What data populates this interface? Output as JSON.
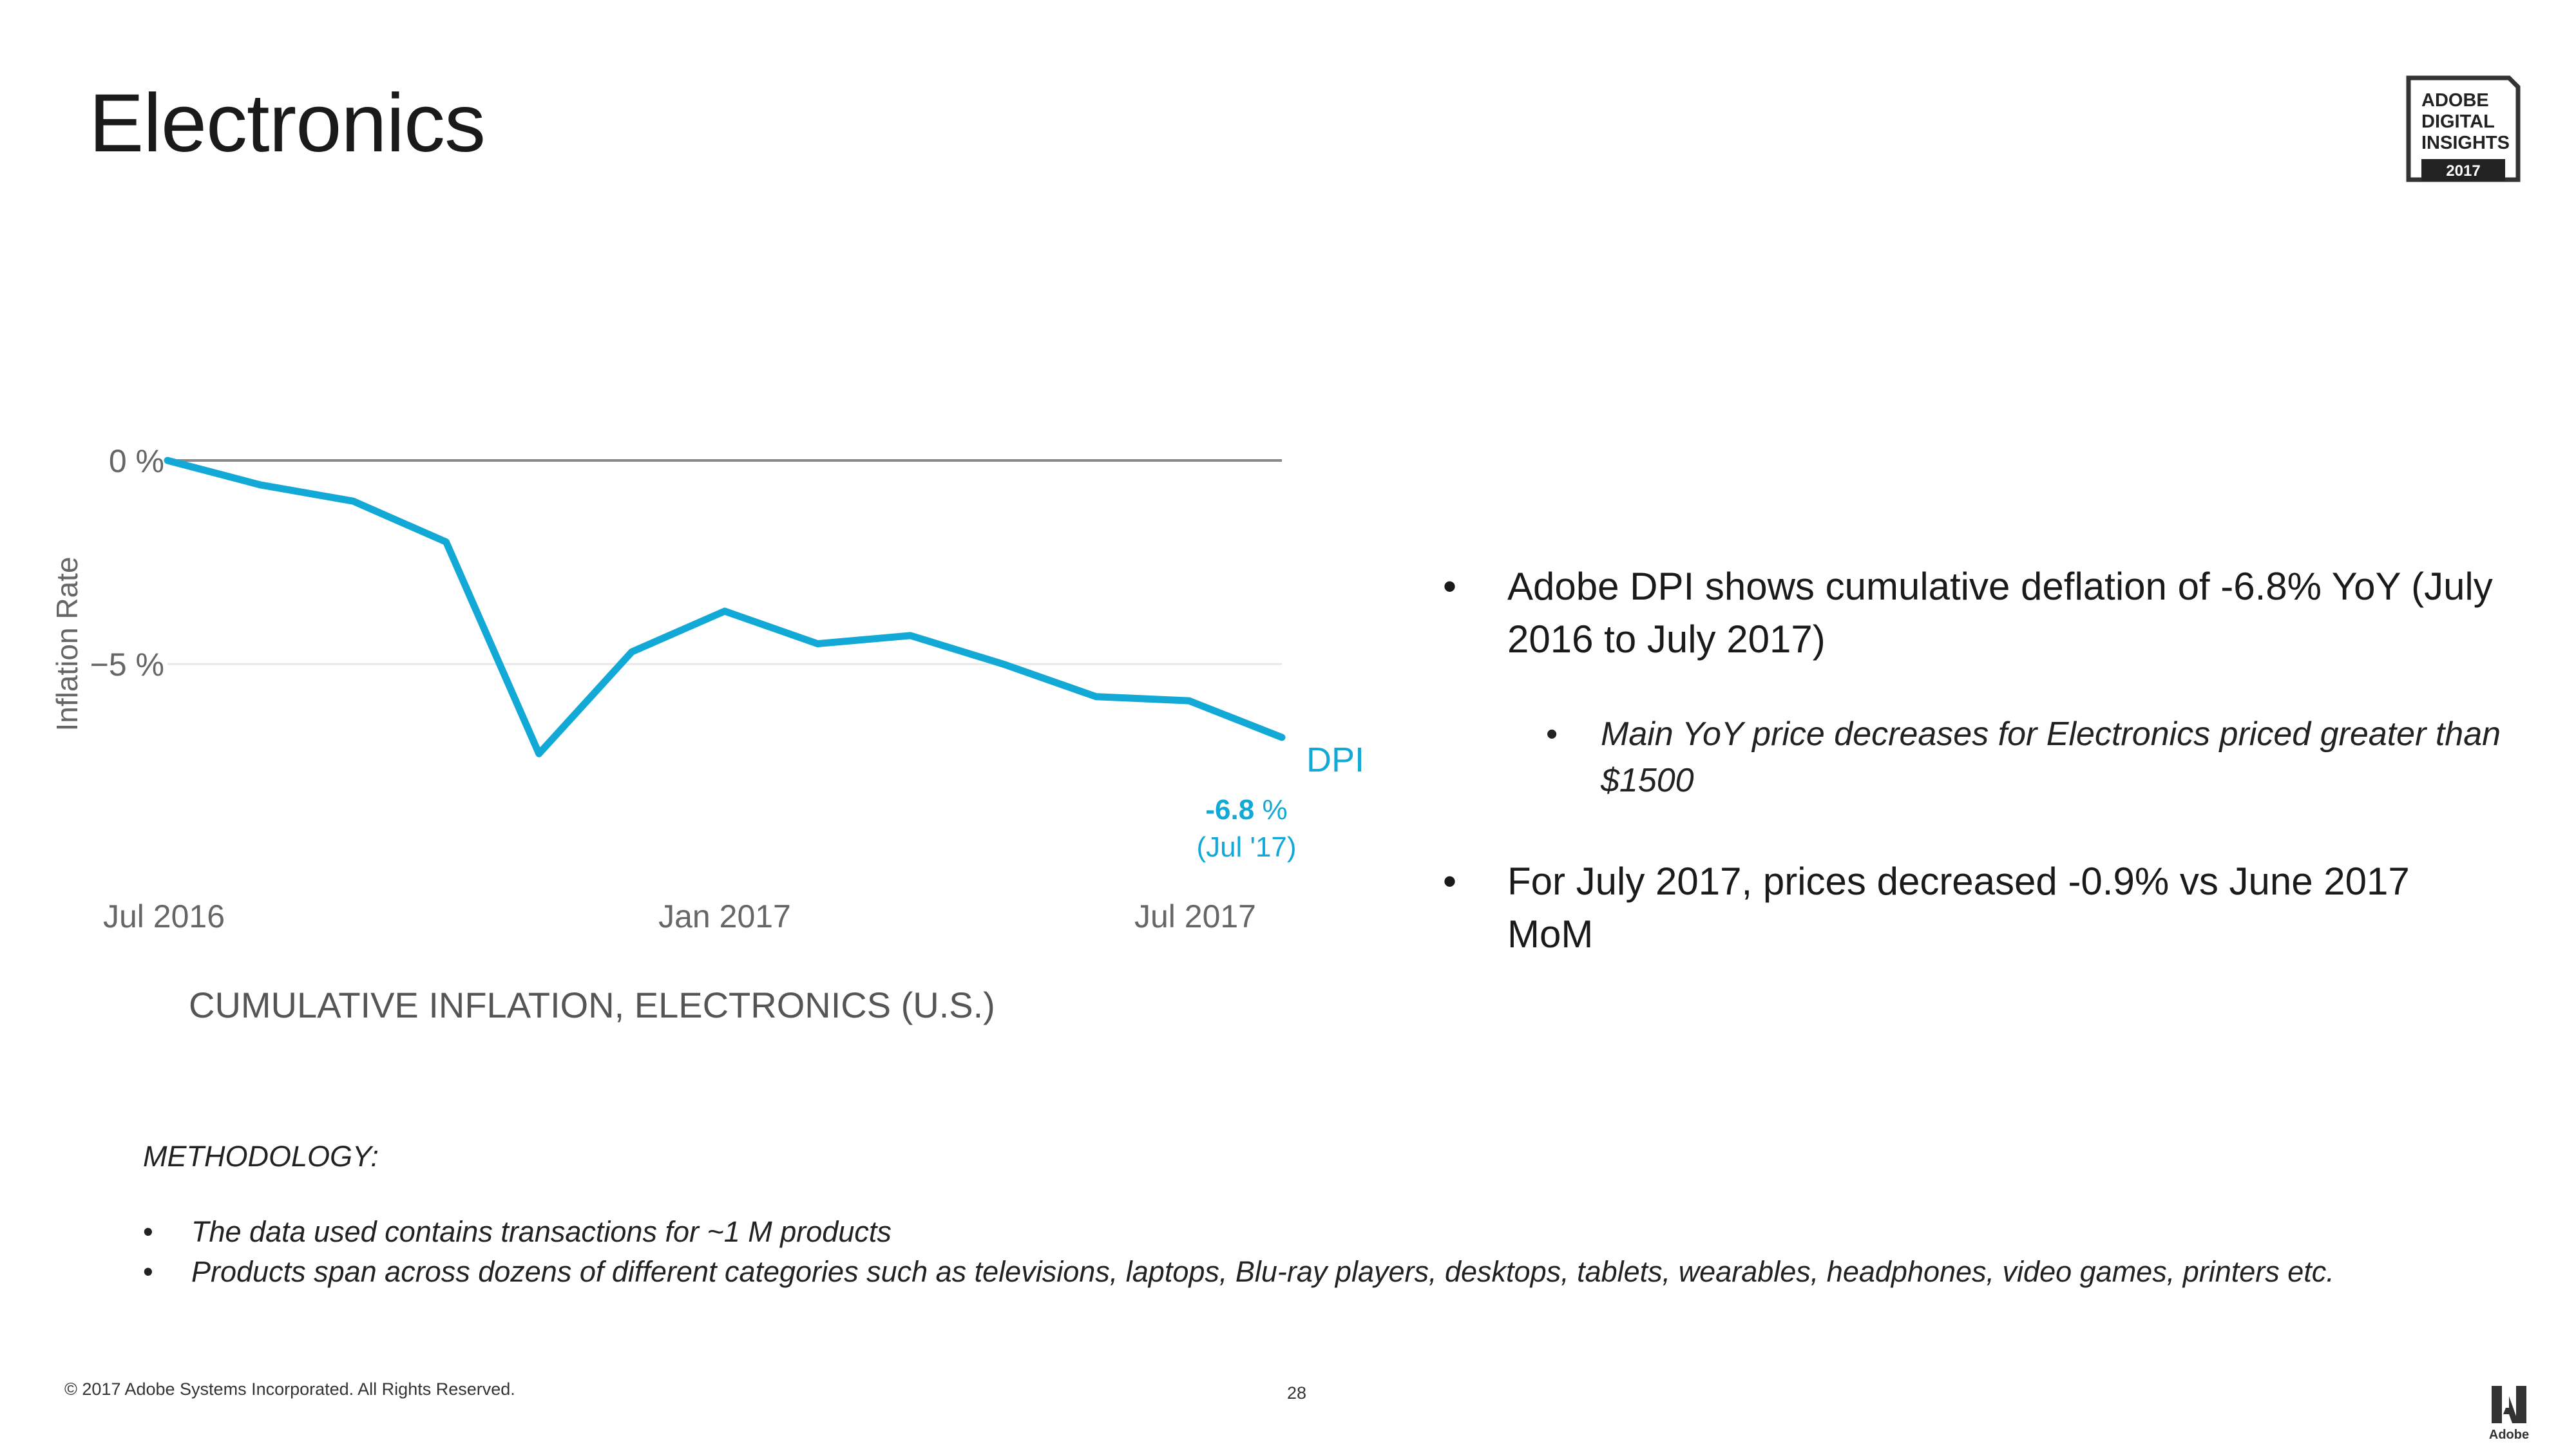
{
  "page": {
    "title": "Electronics",
    "badge": {
      "lines": [
        "ADOBE",
        "DIGITAL",
        "INSIGHTS"
      ],
      "year": "2017"
    },
    "bullets": {
      "main": "Adobe DPI shows cumulative deflation of -6.8% YoY (July 2016 to July 2017)",
      "sub": "Main YoY price decreases for Electronics priced greater than $1500",
      "second": "For July 2017, prices decreased -0.9% vs June 2017 MoM",
      "dot": "•"
    },
    "methodology": {
      "heading": "METHODOLOGY:",
      "items": [
        "The data used contains transactions for ~1 M products",
        "Products span across dozens of different categories such as televisions, laptops, Blu-ray players, desktops, tablets, wearables, headphones, video games, printers etc."
      ]
    },
    "footer": {
      "copyright": "© 2017 Adobe Systems Incorporated.  All Rights Reserved.",
      "page_number": "28",
      "brand": "Adobe"
    }
  },
  "colors": {
    "series": "#12a9d6",
    "axis_text": "#666666",
    "zero_line": "#888888",
    "grid": "#e8e8e8"
  },
  "chart_data": {
    "type": "line",
    "title": "CUMULATIVE INFLATION, ELECTRONICS (U.S.)",
    "ylabel": "Inflation Rate",
    "xlabel": "",
    "x": [
      "2016-07",
      "2016-08",
      "2016-09",
      "2016-10",
      "2016-11",
      "2016-12",
      "2017-01",
      "2017-02",
      "2017-03",
      "2017-04",
      "2017-05",
      "2017-06",
      "2017-07"
    ],
    "series": [
      {
        "name": "DPI",
        "values": [
          0,
          -0.6,
          -1.0,
          -2.0,
          -7.2,
          -4.7,
          -3.7,
          -4.5,
          -4.3,
          -5.0,
          -5.8,
          -5.9,
          -6.8
        ]
      }
    ],
    "x_ticks": [
      "Jul 2016",
      "Jan 2017",
      "Jul 2017"
    ],
    "y_ticks": [
      "0 %",
      "−5 %"
    ],
    "ylim": [
      -10.2,
      0
    ],
    "grid": true,
    "annotation": {
      "value": "-6.8",
      "unit": " %",
      "label": "(Jul '17)"
    }
  }
}
